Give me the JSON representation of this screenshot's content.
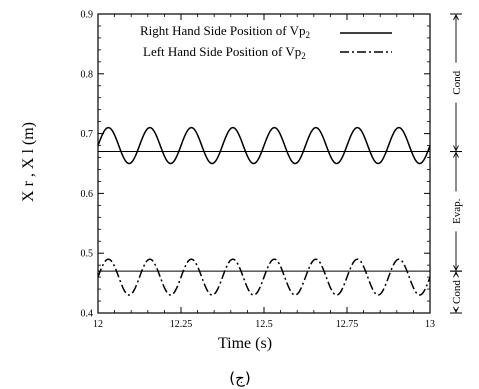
{
  "chart_data": {
    "type": "line",
    "title": "",
    "xlabel": "Time (s)",
    "ylabel": "X r , X l (m)",
    "xlim": [
      12,
      13
    ],
    "ylim": [
      0.4,
      0.9
    ],
    "x_ticks": [
      "12",
      "12.25",
      "12.5",
      "12.75",
      "13"
    ],
    "y_ticks": [
      "0.4",
      "0.5",
      "0.6",
      "0.7",
      "0.8",
      "0.9"
    ],
    "grid": false,
    "legend_placement": "top-center",
    "series": [
      {
        "name": "Right Hand Side Position of Vp",
        "name_subscript": "2",
        "style": "solid",
        "mean": 0.68,
        "amplitude": 0.03,
        "period_s": 0.125,
        "x_start": 12,
        "x_end": 13
      },
      {
        "name": "Left Hand Side Position of Vp",
        "name_subscript": "2",
        "style": "dash-dot",
        "mean": 0.46,
        "amplitude": 0.03,
        "period_s": 0.125,
        "x_start": 12,
        "x_end": 13
      }
    ],
    "reference_lines": [
      {
        "y": 0.67,
        "style": "solid"
      },
      {
        "y": 0.47,
        "style": "solid"
      }
    ],
    "right_annotations": [
      {
        "label": "Cond",
        "y_from": 0.67,
        "y_to": 0.9
      },
      {
        "label": "Evap.",
        "y_from": 0.47,
        "y_to": 0.67
      },
      {
        "label": "Cond",
        "y_from": 0.4,
        "y_to": 0.47
      }
    ],
    "caption": "(ج)"
  }
}
